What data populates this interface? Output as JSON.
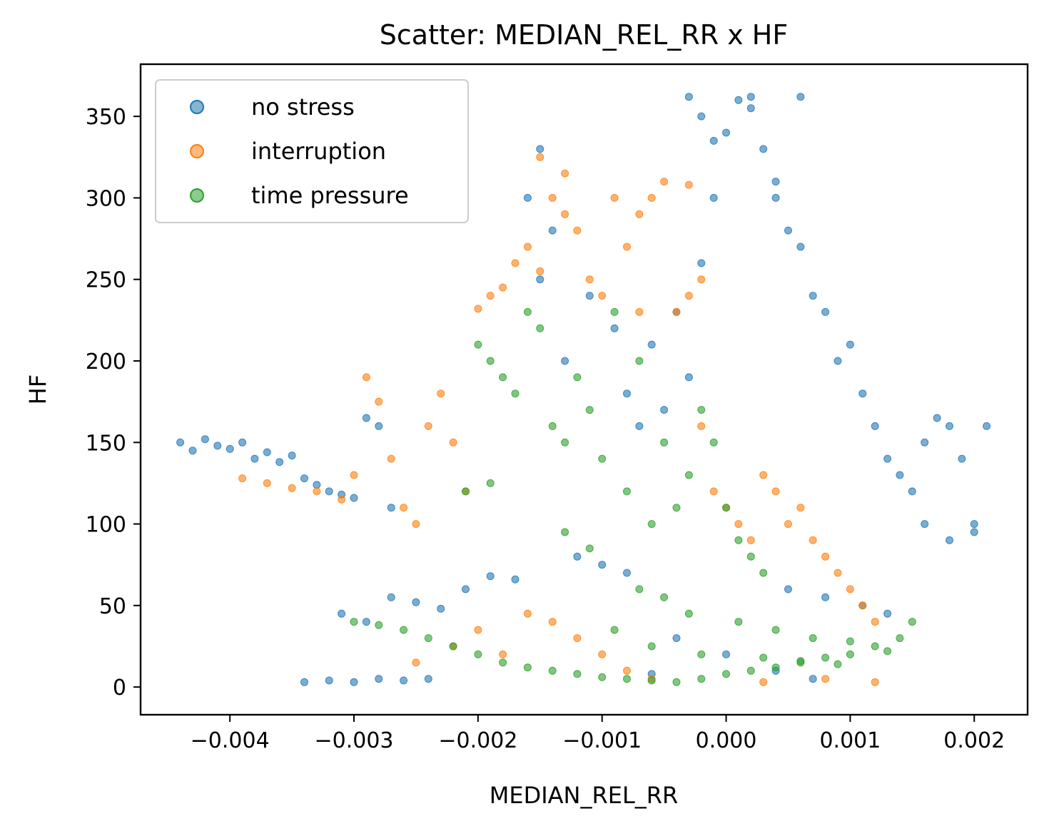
{
  "chart_data": {
    "type": "scatter",
    "title": "Scatter: MEDIAN_REL_RR x HF",
    "xlabel": "MEDIAN_REL_RR",
    "ylabel": "HF",
    "xlim": [
      -0.00472,
      0.00243
    ],
    "ylim": [
      -17,
      382
    ],
    "grid": false,
    "legend_position": "top-left",
    "xticks": [
      {
        "value": -0.004,
        "label": "−0.004"
      },
      {
        "value": -0.003,
        "label": "−0.003"
      },
      {
        "value": -0.002,
        "label": "−0.002"
      },
      {
        "value": -0.001,
        "label": "−0.001"
      },
      {
        "value": 0.0,
        "label": "0.000"
      },
      {
        "value": 0.001,
        "label": "0.001"
      },
      {
        "value": 0.002,
        "label": "0.002"
      }
    ],
    "yticks": [
      {
        "value": 0,
        "label": "0"
      },
      {
        "value": 50,
        "label": "50"
      },
      {
        "value": 100,
        "label": "100"
      },
      {
        "value": 150,
        "label": "150"
      },
      {
        "value": 200,
        "label": "200"
      },
      {
        "value": 250,
        "label": "250"
      },
      {
        "value": 300,
        "label": "300"
      },
      {
        "value": 350,
        "label": "350"
      }
    ],
    "series": [
      {
        "name": "no stress",
        "color": "#1f77b4",
        "points": [
          [
            -0.0044,
            150
          ],
          [
            -0.0043,
            145
          ],
          [
            -0.0042,
            152
          ],
          [
            -0.0041,
            148
          ],
          [
            -0.004,
            146
          ],
          [
            -0.0039,
            150
          ],
          [
            -0.0038,
            140
          ],
          [
            -0.0037,
            144
          ],
          [
            -0.0036,
            138
          ],
          [
            -0.0035,
            142
          ],
          [
            -0.0034,
            128
          ],
          [
            -0.0033,
            124
          ],
          [
            -0.0032,
            120
          ],
          [
            -0.0031,
            118
          ],
          [
            -0.003,
            116
          ],
          [
            -0.0029,
            165
          ],
          [
            -0.0028,
            160
          ],
          [
            -0.0027,
            110
          ],
          [
            -0.0034,
            3
          ],
          [
            -0.0032,
            4
          ],
          [
            -0.003,
            3
          ],
          [
            -0.0028,
            5
          ],
          [
            -0.0026,
            4
          ],
          [
            -0.0024,
            5
          ],
          [
            -0.0031,
            45
          ],
          [
            -0.0029,
            40
          ],
          [
            -0.0027,
            55
          ],
          [
            -0.0025,
            52
          ],
          [
            -0.0023,
            48
          ],
          [
            -0.0021,
            60
          ],
          [
            -0.0019,
            68
          ],
          [
            -0.0017,
            66
          ],
          [
            -0.0015,
            330
          ],
          [
            -0.0016,
            300
          ],
          [
            -0.0015,
            250
          ],
          [
            -0.0014,
            280
          ],
          [
            -0.0013,
            200
          ],
          [
            -0.0011,
            240
          ],
          [
            -0.0009,
            220
          ],
          [
            -0.0008,
            180
          ],
          [
            -0.0007,
            160
          ],
          [
            -0.0006,
            210
          ],
          [
            -0.0005,
            170
          ],
          [
            -0.0004,
            230
          ],
          [
            -0.0003,
            190
          ],
          [
            -0.0002,
            260
          ],
          [
            -0.0001,
            300
          ],
          [
            0.0,
            340
          ],
          [
            0.0001,
            360
          ],
          [
            0.0002,
            355
          ],
          [
            0.0003,
            330
          ],
          [
            0.0004,
            310
          ],
          [
            0.0005,
            280
          ],
          [
            0.0006,
            270
          ],
          [
            0.0007,
            240
          ],
          [
            0.0008,
            230
          ],
          [
            0.0009,
            200
          ],
          [
            0.001,
            210
          ],
          [
            0.0011,
            180
          ],
          [
            0.0012,
            160
          ],
          [
            0.0013,
            140
          ],
          [
            0.0014,
            130
          ],
          [
            0.0015,
            120
          ],
          [
            0.0016,
            150
          ],
          [
            0.0017,
            165
          ],
          [
            0.0018,
            160
          ],
          [
            0.0019,
            140
          ],
          [
            0.002,
            100
          ],
          [
            0.0021,
            160
          ],
          [
            0.002,
            95
          ],
          [
            0.0018,
            90
          ],
          [
            0.0016,
            100
          ],
          [
            -0.0003,
            362
          ],
          [
            -0.0002,
            350
          ],
          [
            0.0002,
            362
          ],
          [
            0.0006,
            362
          ],
          [
            -0.0001,
            335
          ],
          [
            0.0004,
            300
          ],
          [
            -0.0012,
            80
          ],
          [
            -0.001,
            75
          ],
          [
            -0.0008,
            70
          ],
          [
            0.0005,
            60
          ],
          [
            0.0008,
            55
          ],
          [
            0.0011,
            50
          ],
          [
            0.0013,
            45
          ],
          [
            -0.0004,
            30
          ],
          [
            0.0,
            20
          ],
          [
            0.0004,
            10
          ],
          [
            0.0007,
            5
          ],
          [
            -0.0006,
            8
          ]
        ]
      },
      {
        "name": "interruption",
        "color": "#ff7f0e",
        "points": [
          [
            -0.0039,
            128
          ],
          [
            -0.0037,
            125
          ],
          [
            -0.0035,
            122
          ],
          [
            -0.0033,
            120
          ],
          [
            -0.0031,
            115
          ],
          [
            -0.003,
            130
          ],
          [
            -0.0029,
            190
          ],
          [
            -0.0028,
            175
          ],
          [
            -0.0027,
            140
          ],
          [
            -0.0026,
            110
          ],
          [
            -0.0025,
            100
          ],
          [
            -0.0024,
            160
          ],
          [
            -0.0023,
            180
          ],
          [
            -0.0022,
            150
          ],
          [
            -0.0021,
            120
          ],
          [
            -0.002,
            232
          ],
          [
            -0.0019,
            240
          ],
          [
            -0.0018,
            245
          ],
          [
            -0.0017,
            260
          ],
          [
            -0.0016,
            270
          ],
          [
            -0.0015,
            255
          ],
          [
            -0.0014,
            300
          ],
          [
            -0.0013,
            290
          ],
          [
            -0.0012,
            280
          ],
          [
            -0.0011,
            250
          ],
          [
            -0.001,
            240
          ],
          [
            -0.0009,
            300
          ],
          [
            -0.0008,
            270
          ],
          [
            -0.0007,
            230
          ],
          [
            -0.0006,
            300
          ],
          [
            -0.0005,
            310
          ],
          [
            -0.0004,
            230
          ],
          [
            -0.0003,
            240
          ],
          [
            -0.0002,
            160
          ],
          [
            -0.0001,
            120
          ],
          [
            0.0,
            110
          ],
          [
            0.0001,
            100
          ],
          [
            0.0002,
            90
          ],
          [
            0.0003,
            130
          ],
          [
            0.0004,
            120
          ],
          [
            0.0005,
            100
          ],
          [
            0.0006,
            110
          ],
          [
            0.0007,
            90
          ],
          [
            0.0008,
            80
          ],
          [
            0.0009,
            70
          ],
          [
            0.001,
            60
          ],
          [
            0.0011,
            50
          ],
          [
            0.0012,
            40
          ],
          [
            -0.0025,
            15
          ],
          [
            -0.0022,
            25
          ],
          [
            -0.002,
            35
          ],
          [
            -0.0018,
            20
          ],
          [
            -0.0016,
            45
          ],
          [
            -0.0014,
            40
          ],
          [
            -0.0012,
            30
          ],
          [
            -0.001,
            20
          ],
          [
            -0.0008,
            10
          ],
          [
            -0.0006,
            5
          ],
          [
            0.0003,
            3
          ],
          [
            0.0008,
            5
          ],
          [
            0.0012,
            3
          ],
          [
            -0.0015,
            325
          ],
          [
            -0.0013,
            315
          ],
          [
            -0.0007,
            290
          ],
          [
            -0.0003,
            308
          ],
          [
            -0.0002,
            250
          ]
        ]
      },
      {
        "name": "time pressure",
        "color": "#2ca02c",
        "points": [
          [
            -0.003,
            40
          ],
          [
            -0.0028,
            38
          ],
          [
            -0.0026,
            35
          ],
          [
            -0.0024,
            30
          ],
          [
            -0.0022,
            25
          ],
          [
            -0.002,
            20
          ],
          [
            -0.0018,
            15
          ],
          [
            -0.0016,
            12
          ],
          [
            -0.0014,
            10
          ],
          [
            -0.0012,
            8
          ],
          [
            -0.001,
            6
          ],
          [
            -0.0008,
            5
          ],
          [
            -0.0006,
            4
          ],
          [
            -0.0004,
            3
          ],
          [
            -0.0002,
            5
          ],
          [
            0.0,
            8
          ],
          [
            0.0002,
            10
          ],
          [
            0.0004,
            12
          ],
          [
            0.0006,
            15
          ],
          [
            0.0008,
            18
          ],
          [
            0.001,
            20
          ],
          [
            0.0012,
            25
          ],
          [
            0.0014,
            30
          ],
          [
            0.0015,
            40
          ],
          [
            -0.002,
            210
          ],
          [
            -0.0019,
            200
          ],
          [
            -0.0018,
            190
          ],
          [
            -0.0017,
            180
          ],
          [
            -0.0016,
            230
          ],
          [
            -0.0015,
            220
          ],
          [
            -0.0014,
            160
          ],
          [
            -0.0013,
            150
          ],
          [
            -0.0012,
            190
          ],
          [
            -0.0011,
            170
          ],
          [
            -0.001,
            140
          ],
          [
            -0.0009,
            230
          ],
          [
            -0.0008,
            120
          ],
          [
            -0.0007,
            200
          ],
          [
            -0.0006,
            100
          ],
          [
            -0.0005,
            150
          ],
          [
            -0.0004,
            110
          ],
          [
            -0.0003,
            130
          ],
          [
            -0.0002,
            170
          ],
          [
            -0.0001,
            150
          ],
          [
            0.0,
            110
          ],
          [
            0.0001,
            90
          ],
          [
            0.0002,
            80
          ],
          [
            0.0003,
            70
          ],
          [
            -0.0021,
            120
          ],
          [
            -0.0019,
            125
          ],
          [
            -0.0013,
            95
          ],
          [
            -0.0011,
            85
          ],
          [
            -0.0007,
            60
          ],
          [
            -0.0005,
            55
          ],
          [
            -0.0003,
            45
          ],
          [
            0.0001,
            40
          ],
          [
            0.0004,
            35
          ],
          [
            0.0007,
            30
          ],
          [
            0.001,
            28
          ],
          [
            0.0013,
            22
          ],
          [
            -0.0009,
            35
          ],
          [
            -0.0006,
            25
          ],
          [
            -0.0002,
            20
          ],
          [
            0.0003,
            18
          ],
          [
            0.0006,
            16
          ],
          [
            0.0009,
            14
          ]
        ]
      }
    ]
  }
}
